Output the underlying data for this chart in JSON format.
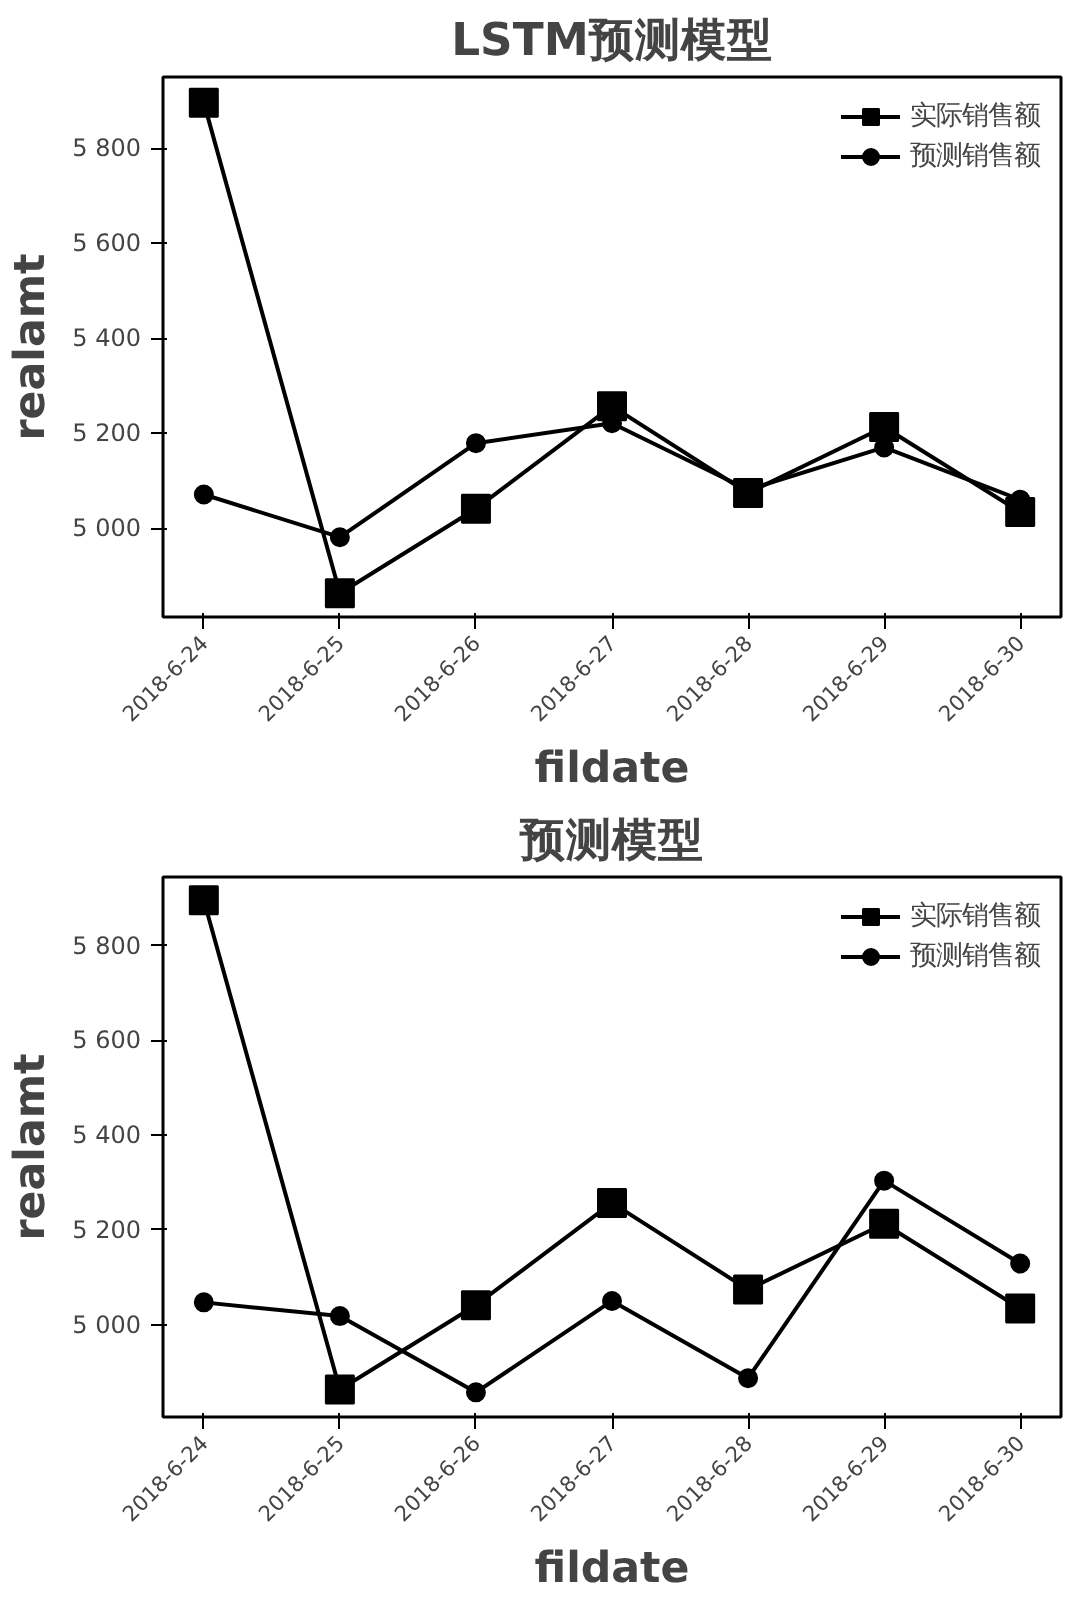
{
  "chart_data": [
    {
      "type": "line",
      "title": "LSTM预测模型",
      "xlabel": "fildate",
      "ylabel": "realamt",
      "categories": [
        "2018-6-24",
        "2018-6-25",
        "2018-6-26",
        "2018-6-27",
        "2018-6-28",
        "2018-6-29",
        "2018-6-30"
      ],
      "series": [
        {
          "name": "实际销售额",
          "color": "#000000",
          "marker": "square",
          "values": [
            5896,
            4863,
            5041,
            5257,
            5074,
            5213,
            5034
          ]
        },
        {
          "name": "预测销售额",
          "color": "#000000",
          "marker": "circle",
          "values": [
            5071,
            4981,
            5179,
            5221,
            5081,
            5170,
            5060
          ]
        }
      ],
      "ylim": [
        4813,
        5950
      ],
      "yticks": [
        {
          "value": 5000,
          "label": "5 000"
        },
        {
          "value": 5200,
          "label": "5 200"
        },
        {
          "value": 5400,
          "label": "5 400"
        },
        {
          "value": 5600,
          "label": "5 600"
        },
        {
          "value": 5800,
          "label": "5 800"
        }
      ],
      "grid": false,
      "legend": "top right",
      "line_style": "solid"
    },
    {
      "type": "line",
      "title": "预测模型",
      "xlabel": "fildate",
      "ylabel": "realamt",
      "categories": [
        "2018-6-24",
        "2018-6-25",
        "2018-6-26",
        "2018-6-27",
        "2018-6-28",
        "2018-6-29",
        "2018-6-30"
      ],
      "series": [
        {
          "name": "实际销售额",
          "color": "#000000",
          "marker": "square",
          "values": [
            5896,
            4863,
            5041,
            5257,
            5074,
            5213,
            5034
          ]
        },
        {
          "name": "预测销售额",
          "color": "#000000",
          "marker": "circle",
          "values": [
            5047,
            5018,
            4857,
            5050,
            4887,
            5304,
            5129
          ]
        }
      ],
      "ylim": [
        4805,
        5945
      ],
      "yticks": [
        {
          "value": 5000,
          "label": "5 000"
        },
        {
          "value": 5200,
          "label": "5 200"
        },
        {
          "value": 5400,
          "label": "5 400"
        },
        {
          "value": 5600,
          "label": "5 600"
        },
        {
          "value": 5800,
          "label": "5 800"
        }
      ],
      "grid": false,
      "legend": "top right",
      "line_style": "solid"
    }
  ]
}
